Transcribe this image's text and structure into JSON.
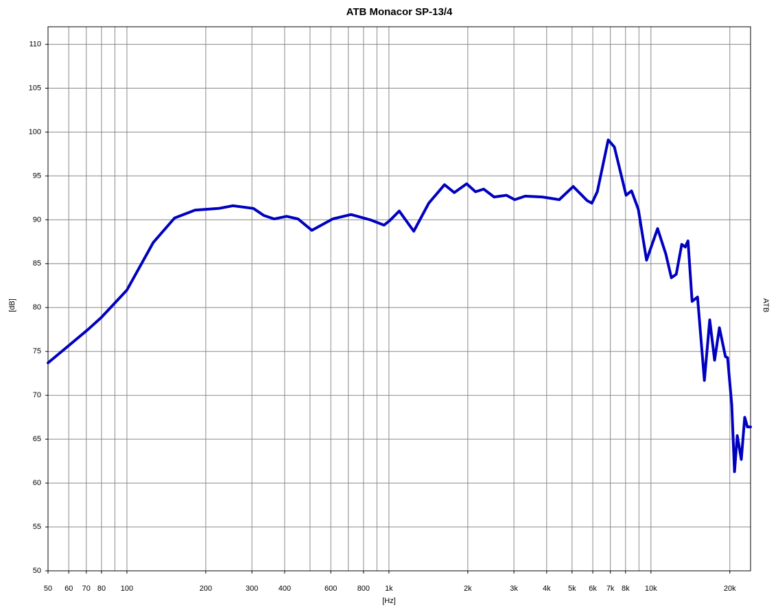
{
  "chart_data": {
    "type": "line",
    "title": "ATB Monacor SP-13/4",
    "x_label": "[Hz]",
    "y_label": "[dB]",
    "y2_label": "ATB",
    "xscale": "log",
    "grid": true,
    "xlim": [
      50,
      24000
    ],
    "ylim": [
      50,
      112
    ],
    "xticks": [
      50,
      60,
      70,
      80,
      100,
      200,
      300,
      400,
      600,
      800,
      {
        "value": 1000,
        "label": "1k"
      },
      {
        "value": 2000,
        "label": "2k"
      },
      {
        "value": 3000,
        "label": "3k"
      },
      {
        "value": 4000,
        "label": "4k"
      },
      {
        "value": 5000,
        "label": "5k"
      },
      {
        "value": 6000,
        "label": "6k"
      },
      {
        "value": 7000,
        "label": "7k"
      },
      {
        "value": 8000,
        "label": "8k"
      },
      {
        "value": 10000,
        "label": "10k"
      },
      {
        "value": 20000,
        "label": "20k"
      }
    ],
    "xminorticks": [
      90,
      500,
      700,
      900,
      9000
    ],
    "yticks": [
      50,
      55,
      60,
      65,
      70,
      75,
      80,
      85,
      90,
      95,
      100,
      105,
      110
    ],
    "series": [
      {
        "color": "#0000c0",
        "x": [
          50,
          71,
          80,
          100,
          126,
          152,
          182,
          224,
          254,
          304,
          333,
          365,
          407,
          450,
          508,
          610,
          717,
          849,
          958,
          1006,
          1095,
          1244,
          1420,
          1630,
          1775,
          1980,
          2140,
          2300,
          2520,
          2810,
          3020,
          3310,
          3850,
          4470,
          5050,
          5700,
          5950,
          6240,
          6870,
          7250,
          8040,
          8430,
          8950,
          9620,
          10600,
          11400,
          11970,
          12490,
          13110,
          13520,
          13850,
          14360,
          15060,
          16000,
          16770,
          17500,
          18250,
          19250,
          19610,
          20350,
          20840,
          21350,
          22130,
          22800,
          23350,
          24000
        ],
        "values": [
          73.7,
          77.5,
          78.9,
          82.0,
          87.4,
          90.2,
          91.1,
          91.3,
          91.6,
          91.3,
          90.5,
          90.1,
          90.4,
          90.1,
          88.8,
          90.1,
          90.6,
          90.0,
          89.4,
          89.9,
          91.0,
          88.7,
          91.9,
          94.0,
          93.1,
          94.1,
          93.2,
          93.5,
          92.6,
          92.8,
          92.3,
          92.7,
          92.6,
          92.3,
          93.8,
          92.2,
          91.9,
          93.2,
          99.1,
          98.3,
          92.8,
          93.3,
          91.2,
          85.4,
          89.0,
          86.1,
          83.4,
          83.8,
          87.2,
          86.9,
          87.6,
          80.7,
          81.2,
          71.7,
          78.6,
          74.0,
          77.7,
          74.4,
          74.3,
          68.9,
          61.3,
          65.4,
          62.7,
          67.5,
          66.4,
          66.4
        ]
      }
    ]
  }
}
